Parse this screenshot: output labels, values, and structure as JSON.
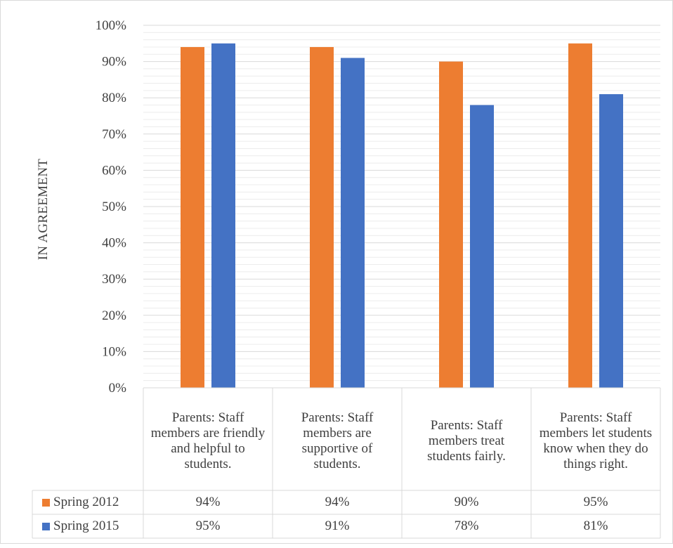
{
  "chart_data": {
    "type": "bar",
    "title": "",
    "ylabel": "IN AGREEMENT",
    "xlabel": "",
    "ylim": [
      0,
      100
    ],
    "yticks": [
      "0%",
      "10%",
      "20%",
      "30%",
      "40%",
      "50%",
      "60%",
      "70%",
      "80%",
      "90%",
      "100%"
    ],
    "categories": [
      "Parents: Staff members are friendly and helpful to students.",
      "Parents: Staff members are supportive of students.",
      "Parents: Staff members treat students fairly.",
      "Parents: Staff members let students know when they do things right."
    ],
    "series": [
      {
        "name": "Spring 2012",
        "color": "#ED7D31",
        "values": [
          94,
          94,
          90,
          95
        ],
        "labels": [
          "94%",
          "94%",
          "90%",
          "95%"
        ]
      },
      {
        "name": "Spring 2015",
        "color": "#4472C4",
        "values": [
          95,
          91,
          78,
          81
        ],
        "labels": [
          "95%",
          "91%",
          "78%",
          "81%"
        ]
      }
    ],
    "grid": true,
    "data_table": true
  }
}
